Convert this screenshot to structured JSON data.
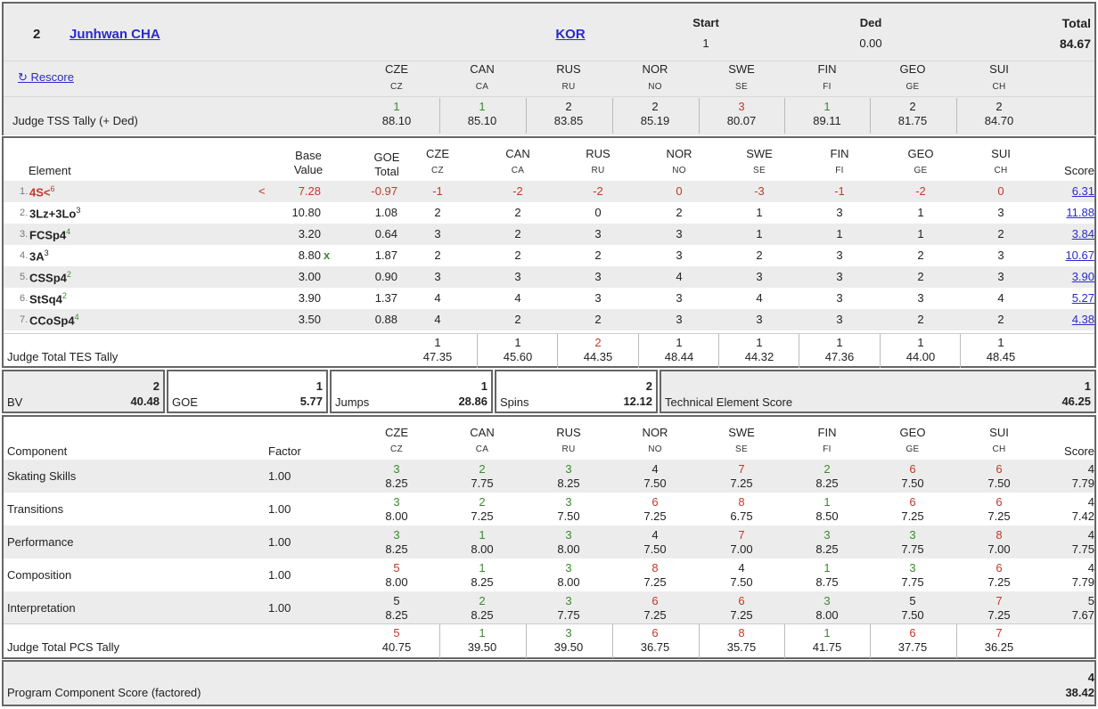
{
  "header": {
    "rank": "2",
    "skater": "Junhwan CHA",
    "nation": "KOR",
    "start_label": "Start",
    "start_value": "1",
    "ded_label": "Ded",
    "ded_value": "0.00",
    "total_label": "Total",
    "total_value": "84.67",
    "rescore": "Rescore",
    "tss_label": "Judge TSS Tally (+ Ded)"
  },
  "judges": [
    {
      "name": "CZE",
      "code": "CZ"
    },
    {
      "name": "CAN",
      "code": "CA"
    },
    {
      "name": "RUS",
      "code": "RU"
    },
    {
      "name": "NOR",
      "code": "NO"
    },
    {
      "name": "SWE",
      "code": "SE"
    },
    {
      "name": "FIN",
      "code": "FI"
    },
    {
      "name": "GEO",
      "code": "GE"
    },
    {
      "name": "SUI",
      "code": "CH"
    }
  ],
  "tss_tally": [
    {
      "rank": "1",
      "value": "88.10",
      "tone": "green"
    },
    {
      "rank": "1",
      "value": "85.10",
      "tone": "green"
    },
    {
      "rank": "2",
      "value": "83.85",
      "tone": "plain"
    },
    {
      "rank": "2",
      "value": "85.19",
      "tone": "plain"
    },
    {
      "rank": "3",
      "value": "80.07",
      "tone": "red"
    },
    {
      "rank": "1",
      "value": "89.11",
      "tone": "green"
    },
    {
      "rank": "2",
      "value": "81.75",
      "tone": "plain"
    },
    {
      "rank": "2",
      "value": "84.70",
      "tone": "plain"
    }
  ],
  "elements_table": {
    "col_element": "Element",
    "col_base_1": "Base",
    "col_base_2": "Value",
    "col_goe_1": "GOE",
    "col_goe_2": "Total",
    "col_score": "Score",
    "rows": [
      {
        "num": "1.",
        "name": "4S<",
        "sup": "6",
        "sup_tone": "red",
        "name_tone": "red",
        "flag": "<",
        "base": "7.28",
        "bonus": "",
        "goe": "-0.97",
        "marks": [
          "-1",
          "-2",
          "-2",
          "0",
          "-3",
          "-1",
          "-2",
          "0"
        ],
        "score": "6.31",
        "row_tone": "red"
      },
      {
        "num": "2.",
        "name": "3Lz+3Lo",
        "sup": "3",
        "sup_tone": "plain",
        "name_tone": "plain",
        "flag": "",
        "base": "10.80",
        "bonus": "",
        "goe": "1.08",
        "marks": [
          "2",
          "2",
          "0",
          "2",
          "1",
          "3",
          "1",
          "3"
        ],
        "score": "11.88",
        "row_tone": "plain"
      },
      {
        "num": "3.",
        "name": "FCSp4",
        "sup": "4",
        "sup_tone": "green",
        "name_tone": "plain",
        "flag": "",
        "base": "3.20",
        "bonus": "",
        "goe": "0.64",
        "marks": [
          "3",
          "2",
          "3",
          "3",
          "1",
          "1",
          "1",
          "2"
        ],
        "score": "3.84",
        "row_tone": "plain"
      },
      {
        "num": "4.",
        "name": "3A",
        "sup": "3",
        "sup_tone": "plain",
        "name_tone": "plain",
        "flag": "",
        "base": "8.80",
        "bonus": "x",
        "goe": "1.87",
        "marks": [
          "2",
          "2",
          "2",
          "3",
          "2",
          "3",
          "2",
          "3"
        ],
        "score": "10.67",
        "row_tone": "plain"
      },
      {
        "num": "5.",
        "name": "CSSp4",
        "sup": "2",
        "sup_tone": "green",
        "name_tone": "plain",
        "flag": "",
        "base": "3.00",
        "bonus": "",
        "goe": "0.90",
        "marks": [
          "3",
          "3",
          "3",
          "4",
          "3",
          "3",
          "2",
          "3"
        ],
        "score": "3.90",
        "row_tone": "plain"
      },
      {
        "num": "6.",
        "name": "StSq4",
        "sup": "2",
        "sup_tone": "green",
        "name_tone": "plain",
        "flag": "",
        "base": "3.90",
        "bonus": "",
        "goe": "1.37",
        "marks": [
          "4",
          "4",
          "3",
          "3",
          "4",
          "3",
          "3",
          "4"
        ],
        "score": "5.27",
        "row_tone": "plain"
      },
      {
        "num": "7.",
        "name": "CCoSp4",
        "sup": "4",
        "sup_tone": "green",
        "name_tone": "plain",
        "flag": "",
        "base": "3.50",
        "bonus": "",
        "goe": "0.88",
        "marks": [
          "4",
          "2",
          "2",
          "3",
          "3",
          "3",
          "2",
          "2"
        ],
        "score": "4.38",
        "row_tone": "plain"
      }
    ],
    "tes_label": "Judge Total TES Tally",
    "tes_tally": [
      {
        "rank": "1",
        "value": "47.35",
        "tone": "plain"
      },
      {
        "rank": "1",
        "value": "45.60",
        "tone": "plain"
      },
      {
        "rank": "2",
        "value": "44.35",
        "tone": "red"
      },
      {
        "rank": "1",
        "value": "48.44",
        "tone": "plain"
      },
      {
        "rank": "1",
        "value": "44.32",
        "tone": "plain"
      },
      {
        "rank": "1",
        "value": "47.36",
        "tone": "plain"
      },
      {
        "rank": "1",
        "value": "44.00",
        "tone": "plain"
      },
      {
        "rank": "1",
        "value": "48.45",
        "tone": "plain"
      }
    ]
  },
  "summary": [
    {
      "label": "BV",
      "rank": "2",
      "value": "40.48"
    },
    {
      "label": "GOE",
      "rank": "1",
      "value": "5.77"
    },
    {
      "label": "Jumps",
      "rank": "1",
      "value": "28.86"
    },
    {
      "label": "Spins",
      "rank": "2",
      "value": "12.12"
    },
    {
      "label": "Technical Element Score",
      "rank": "1",
      "value": "46.25"
    }
  ],
  "components_table": {
    "col_component": "Component",
    "col_factor": "Factor",
    "col_score": "Score",
    "rows": [
      {
        "name": "Skating Skills",
        "factor": "1.00",
        "cells": [
          {
            "r": "3",
            "v": "8.25",
            "t": "green"
          },
          {
            "r": "2",
            "v": "7.75",
            "t": "green"
          },
          {
            "r": "3",
            "v": "8.25",
            "t": "green"
          },
          {
            "r": "4",
            "v": "7.50",
            "t": "plain"
          },
          {
            "r": "7",
            "v": "7.25",
            "t": "red"
          },
          {
            "r": "2",
            "v": "8.25",
            "t": "green"
          },
          {
            "r": "6",
            "v": "7.50",
            "t": "red"
          },
          {
            "r": "6",
            "v": "7.50",
            "t": "red"
          }
        ],
        "rank": "4",
        "score": "7.79"
      },
      {
        "name": "Transitions",
        "factor": "1.00",
        "cells": [
          {
            "r": "3",
            "v": "8.00",
            "t": "green"
          },
          {
            "r": "2",
            "v": "7.25",
            "t": "green"
          },
          {
            "r": "3",
            "v": "7.50",
            "t": "green"
          },
          {
            "r": "6",
            "v": "7.25",
            "t": "red"
          },
          {
            "r": "8",
            "v": "6.75",
            "t": "red"
          },
          {
            "r": "1",
            "v": "8.50",
            "t": "green"
          },
          {
            "r": "6",
            "v": "7.25",
            "t": "red"
          },
          {
            "r": "6",
            "v": "7.25",
            "t": "red"
          }
        ],
        "rank": "4",
        "score": "7.42"
      },
      {
        "name": "Performance",
        "factor": "1.00",
        "cells": [
          {
            "r": "3",
            "v": "8.25",
            "t": "green"
          },
          {
            "r": "1",
            "v": "8.00",
            "t": "green"
          },
          {
            "r": "3",
            "v": "8.00",
            "t": "green"
          },
          {
            "r": "4",
            "v": "7.50",
            "t": "plain"
          },
          {
            "r": "7",
            "v": "7.00",
            "t": "red"
          },
          {
            "r": "3",
            "v": "8.25",
            "t": "green"
          },
          {
            "r": "3",
            "v": "7.75",
            "t": "green"
          },
          {
            "r": "8",
            "v": "7.00",
            "t": "red"
          }
        ],
        "rank": "4",
        "score": "7.75"
      },
      {
        "name": "Composition",
        "factor": "1.00",
        "cells": [
          {
            "r": "5",
            "v": "8.00",
            "t": "red"
          },
          {
            "r": "1",
            "v": "8.25",
            "t": "green"
          },
          {
            "r": "3",
            "v": "8.00",
            "t": "green"
          },
          {
            "r": "8",
            "v": "7.25",
            "t": "red"
          },
          {
            "r": "4",
            "v": "7.50",
            "t": "plain"
          },
          {
            "r": "1",
            "v": "8.75",
            "t": "green"
          },
          {
            "r": "3",
            "v": "7.75",
            "t": "green"
          },
          {
            "r": "6",
            "v": "7.25",
            "t": "red"
          }
        ],
        "rank": "4",
        "score": "7.79"
      },
      {
        "name": "Interpretation",
        "factor": "1.00",
        "cells": [
          {
            "r": "5",
            "v": "8.25",
            "t": "plain"
          },
          {
            "r": "2",
            "v": "8.25",
            "t": "green"
          },
          {
            "r": "3",
            "v": "7.75",
            "t": "green"
          },
          {
            "r": "6",
            "v": "7.25",
            "t": "red"
          },
          {
            "r": "6",
            "v": "7.25",
            "t": "red"
          },
          {
            "r": "3",
            "v": "8.00",
            "t": "green"
          },
          {
            "r": "5",
            "v": "7.50",
            "t": "plain"
          },
          {
            "r": "7",
            "v": "7.25",
            "t": "red"
          }
        ],
        "rank": "5",
        "score": "7.67"
      }
    ],
    "pcs_label": "Judge Total PCS Tally",
    "pcs_tally": [
      {
        "rank": "5",
        "value": "40.75",
        "tone": "red"
      },
      {
        "rank": "1",
        "value": "39.50",
        "tone": "green"
      },
      {
        "rank": "3",
        "value": "39.50",
        "tone": "green"
      },
      {
        "rank": "6",
        "value": "36.75",
        "tone": "red"
      },
      {
        "rank": "8",
        "value": "35.75",
        "tone": "red"
      },
      {
        "rank": "1",
        "value": "41.75",
        "tone": "green"
      },
      {
        "rank": "6",
        "value": "37.75",
        "tone": "red"
      },
      {
        "rank": "7",
        "value": "36.25",
        "tone": "red"
      }
    ]
  },
  "pcs_total": {
    "label": "Program Component Score (factored)",
    "rank": "4",
    "value": "38.42"
  },
  "colors": {
    "green": "#3a8a2e",
    "red": "#c0392b",
    "link": "#2a2acc",
    "panel_gray": "#ececec"
  }
}
